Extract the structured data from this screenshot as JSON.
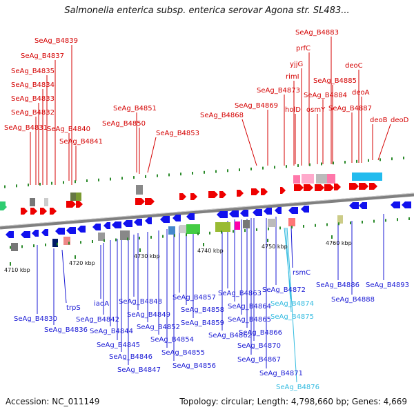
{
  "title": "Salmonella enterica subsp. enterica serovar Agona str. SL483...",
  "footer": {
    "accession": "Accession: NC_011149",
    "topology": "Topology: circular; Length: 4,798,660 bp; Genes: 4,669"
  },
  "colors": {
    "forward_label": "#d40000",
    "reverse_label": "#1a1ad4",
    "rna_label": "#33bbe0",
    "forward_arrow": "#ee0000",
    "reverse_arrow": "#1111ee",
    "backbone": "#808080",
    "tick_green": "#2a8a2a"
  },
  "kbp_ticks": [
    {
      "label": "4710 kbp"
    },
    {
      "label": "4720 kbp"
    },
    {
      "label": "4730 kbp"
    },
    {
      "label": "4740 kbp"
    },
    {
      "label": "4750 kbp"
    },
    {
      "label": "4760 kbp"
    }
  ],
  "forward_labels": [
    "SeAg_B4839",
    "SeAg_B4837",
    "SeAg_B4835",
    "SeAg_B4834",
    "SeAg_B4833",
    "SeAg_B4832",
    "SeAg_B4831",
    "SeAg_B4840",
    "SeAg_B4841",
    "SeAg_B4851",
    "SeAg_B4850",
    "SeAg_B4853",
    "SeAg_B4868",
    "SeAg_B4869",
    "SeAg_B4873",
    "SeAg_B4883",
    "prfC",
    "yjjG",
    "rimI",
    "holD",
    "osmY",
    "SeAg_B4884",
    "SeAg_B4885",
    "SeAg_B4887",
    "deoC",
    "deoA",
    "deoB",
    "deoD"
  ],
  "reverse_labels": [
    "SeAg_B4830",
    "SeAg_B4836",
    "trpS",
    "iadA",
    "SeAg_B4842",
    "SeAg_B4844",
    "SeAg_B4845",
    "SeAg_B4846",
    "SeAg_B4847",
    "SeAg_B4848",
    "SeAg_B4849",
    "SeAg_B4852",
    "SeAg_B4854",
    "SeAg_B4855",
    "SeAg_B4856",
    "SeAg_B4857",
    "SeAg_B4858",
    "SeAg_B4859",
    "SeAg_B4862",
    "SeAg_B4863",
    "SeAg_B4864",
    "SeAg_B4865",
    "SeAg_B4866",
    "SeAg_B4867",
    "SeAg_B4870",
    "SeAg_B4871",
    "SeAg_B4872",
    "rsmC",
    "SeAg_B4886",
    "SeAg_B4888",
    "SeAg_B4893"
  ],
  "rna_labels": [
    "SeAg_B4874",
    "SeAg_B4875",
    "SeAg_B4876"
  ]
}
